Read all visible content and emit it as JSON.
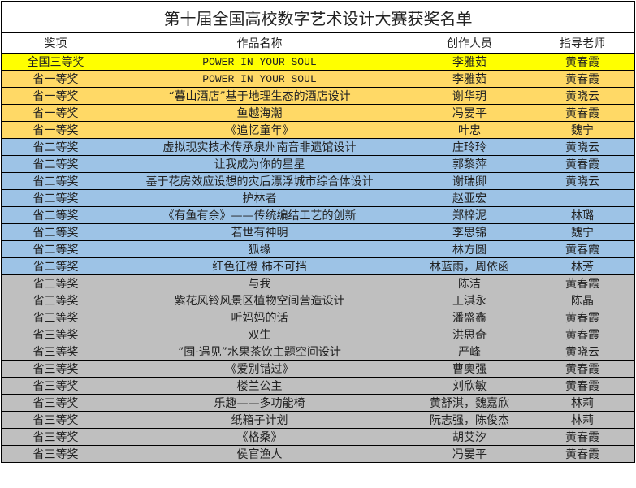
{
  "title": "第十届全国高校数字艺术设计大赛获奖名单",
  "headers": [
    "奖项",
    "作品名称",
    "创作人员",
    "指导老师"
  ],
  "colors": {
    "yellow": "#FFFF00",
    "orange": "#FFD966",
    "blue": "#9DC3E6",
    "gray": "#BFBFBF"
  },
  "rows": [
    {
      "award": "全国三等奖",
      "work": "POWER IN YOUR SOUL",
      "creator": "李雅茹",
      "advisor": "黄春霞",
      "color": "yellow"
    },
    {
      "award": "省一等奖",
      "work": "POWER IN YOUR SOUL",
      "creator": "李雅茹",
      "advisor": "黄春霞",
      "color": "orange"
    },
    {
      "award": "省一等奖",
      "work": "“暮山酒店”基于地理生态的酒店设计",
      "creator": "谢华玥",
      "advisor": "黄晓云",
      "color": "orange"
    },
    {
      "award": "省一等奖",
      "work": "鱼越海潮",
      "creator": "冯晏平",
      "advisor": "黄春霞",
      "color": "orange"
    },
    {
      "award": "省一等奖",
      "work": "《追忆童年》",
      "creator": "叶忠",
      "advisor": "魏宁",
      "color": "orange"
    },
    {
      "award": "省二等奖",
      "work": "虚拟现实技术传承泉州南音非遗馆设计",
      "creator": "庄玲玲",
      "advisor": "黄晓云",
      "color": "blue"
    },
    {
      "award": "省二等奖",
      "work": "让我成为你的星星",
      "creator": "郭黎萍",
      "advisor": "黄春霞",
      "color": "blue"
    },
    {
      "award": "省二等奖",
      "work": "基于花房效应设想的灾后漂浮城市综合体设计",
      "creator": "谢瑞卿",
      "advisor": "黄晓云",
      "color": "blue"
    },
    {
      "award": "省二等奖",
      "work": "护林者",
      "creator": "赵亚宏",
      "advisor": "",
      "color": "blue"
    },
    {
      "award": "省二等奖",
      "work": "《有鱼有余》——传统编结工艺的创新",
      "creator": "郑梓泥",
      "advisor": "林璐",
      "color": "blue"
    },
    {
      "award": "省二等奖",
      "work": "若世有神明",
      "creator": "李思锦",
      "advisor": "魏宁",
      "color": "blue"
    },
    {
      "award": "省二等奖",
      "work": "狐缘",
      "creator": "林方圆",
      "advisor": "黄春霞",
      "color": "blue"
    },
    {
      "award": "省二等奖",
      "work": "红色征橙  柿不可挡",
      "creator": "林蓝雨，周依函",
      "advisor": "林芳",
      "color": "blue"
    },
    {
      "award": "省三等奖",
      "work": "与我",
      "creator": "陈洁",
      "advisor": "黄春霞",
      "color": "gray"
    },
    {
      "award": "省三等奖",
      "work": "紫花风铃风景区植物空间营造设计",
      "creator": "王淇永",
      "advisor": "陈晶",
      "color": "gray"
    },
    {
      "award": "省三等奖",
      "work": "听妈妈的话",
      "creator": "潘盛鑫",
      "advisor": "黄春霞",
      "color": "gray"
    },
    {
      "award": "省三等奖",
      "work": "双生",
      "creator": "洪思奇",
      "advisor": "黄春霞",
      "color": "gray"
    },
    {
      "award": "省三等奖",
      "work": "”囿·遇见”水果茶饮主题空间设计",
      "creator": "严峰",
      "advisor": "黄晓云",
      "color": "gray"
    },
    {
      "award": "省三等奖",
      "work": "《爱别错过》",
      "creator": "曹奥强",
      "advisor": "黄春霞",
      "color": "gray"
    },
    {
      "award": "省三等奖",
      "work": "楼兰公主",
      "creator": "刘欣敏",
      "advisor": "黄春霞",
      "color": "gray"
    },
    {
      "award": "省三等奖",
      "work": "乐趣——多功能椅",
      "creator": "黄舒淇，魏嘉欣",
      "advisor": "林莉",
      "color": "gray"
    },
    {
      "award": "省三等奖",
      "work": "纸箱子计划",
      "creator": "阮志强，陈俊杰",
      "advisor": "林莉",
      "color": "gray"
    },
    {
      "award": "省三等奖",
      "work": "《格桑》",
      "creator": "胡艾汐",
      "advisor": "黄春霞",
      "color": "gray"
    },
    {
      "award": "省三等奖",
      "work": "侯官渔人",
      "creator": "冯晏平",
      "advisor": "黄春霞",
      "color": "gray"
    }
  ]
}
